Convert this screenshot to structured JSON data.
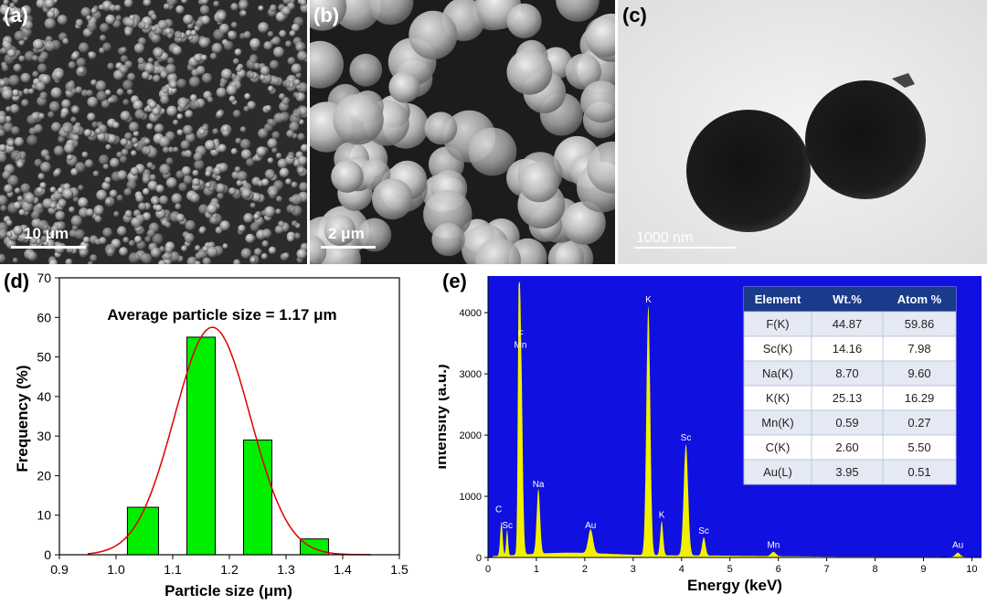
{
  "panels": {
    "a": {
      "label": "(a)",
      "scale": "10 μm"
    },
    "b": {
      "label": "(b)",
      "scale": "2 μm"
    },
    "c": {
      "label": "(c)",
      "scale": "1000 nm"
    },
    "d": {
      "label": "(d)"
    },
    "e": {
      "label": "(e)"
    }
  },
  "colors": {
    "bar_fill": "#00ee00",
    "fit_line": "#dd0000",
    "eds_background": "#1010e0",
    "eds_spectrum": "#f0f000",
    "eds_peak_label": "#ffffff",
    "table_header": "#1a3a8c"
  },
  "chart_data": [
    {
      "type": "bar",
      "panel": "d",
      "annotation": "Average particle size = 1.17 μm",
      "xlabel": "Particle size (μm)",
      "ylabel": "Frequency (%)",
      "xlim": [
        0.9,
        1.5
      ],
      "ylim": [
        0,
        70
      ],
      "xticks": [
        "0.9",
        "1.0",
        "1.1",
        "1.2",
        "1.3",
        "1.4",
        "1.5"
      ],
      "yticks": [
        "0",
        "10",
        "20",
        "30",
        "40",
        "50",
        "60",
        "70"
      ],
      "bins": [
        {
          "x_start": 1.02,
          "x_end": 1.075,
          "value": 12
        },
        {
          "x_start": 1.125,
          "x_end": 1.175,
          "value": 55
        },
        {
          "x_start": 1.225,
          "x_end": 1.275,
          "value": 29
        },
        {
          "x_start": 1.325,
          "x_end": 1.375,
          "value": 4
        }
      ],
      "fit": {
        "type": "gaussian",
        "mean": 1.17,
        "peak": 57.5,
        "sigma": 0.067
      }
    },
    {
      "type": "line",
      "panel": "e",
      "xlabel": "Energy (keV)",
      "ylabel": "Intensity (a.u.)",
      "xlim": [
        0,
        10.2
      ],
      "ylim": [
        0,
        4600
      ],
      "xticks": [
        "0",
        "1",
        "2",
        "3",
        "4",
        "5",
        "6",
        "7",
        "8",
        "9",
        "10"
      ],
      "yticks": [
        "0",
        "1000",
        "2000",
        "3000",
        "4000"
      ],
      "peaks": [
        {
          "x": 0.277,
          "y": 560,
          "label": "C"
        },
        {
          "x": 0.395,
          "y": 420,
          "label": "Sc"
        },
        {
          "x": 0.677,
          "y": 3400,
          "label": "F"
        },
        {
          "x": 0.637,
          "y": 3220,
          "label": "Mn"
        },
        {
          "x": 1.041,
          "y": 1060,
          "label": "Na"
        },
        {
          "x": 2.12,
          "y": 390,
          "label": "Au"
        },
        {
          "x": 3.313,
          "y": 4080,
          "label": "K"
        },
        {
          "x": 3.59,
          "y": 560,
          "label": "K"
        },
        {
          "x": 4.09,
          "y": 1820,
          "label": "Sc"
        },
        {
          "x": 4.46,
          "y": 300,
          "label": "Sc"
        },
        {
          "x": 5.9,
          "y": 70,
          "label": "Mn"
        },
        {
          "x": 9.71,
          "y": 70,
          "label": "Au"
        }
      ],
      "table": {
        "headers": [
          "Element",
          "Wt.%",
          "Atom %"
        ],
        "rows": [
          [
            "F(K)",
            "44.87",
            "59.86"
          ],
          [
            "Sc(K)",
            "14.16",
            "7.98"
          ],
          [
            "Na(K)",
            "8.70",
            "9.60"
          ],
          [
            "K(K)",
            "25.13",
            "16.29"
          ],
          [
            "Mn(K)",
            "0.59",
            "0.27"
          ],
          [
            "C(K)",
            "2.60",
            "5.50"
          ],
          [
            "Au(L)",
            "3.95",
            "0.51"
          ]
        ]
      }
    }
  ]
}
